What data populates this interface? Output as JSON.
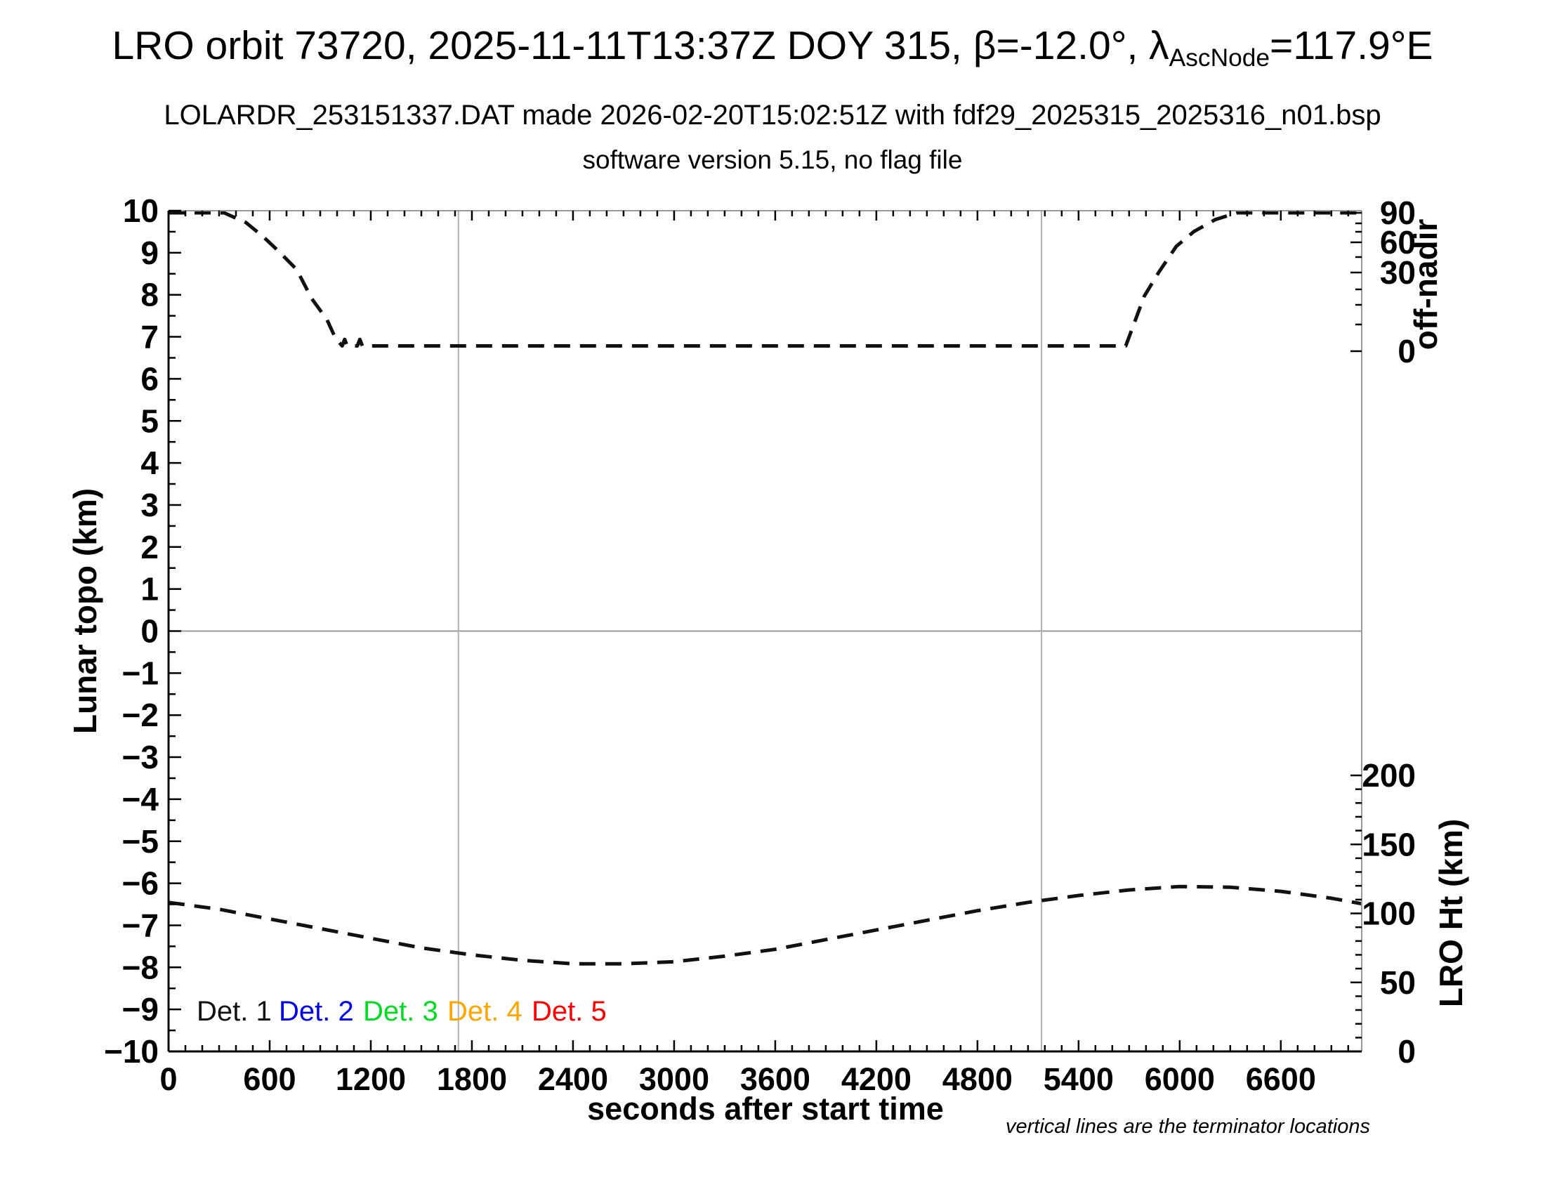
{
  "header": {
    "title_pre": "LRO orbit 73720, 2025-11-11T13:37Z DOY 315, β=-12.0°, λ",
    "title_sub": "AscNode",
    "title_post": "=117.9°E",
    "subtitle1": "LOLARDR_253151337.DAT made 2026-02-20T15:02:51Z with fdf29_2025315_2025316_n01.bsp",
    "subtitle2": "software version 5.15, no flag file"
  },
  "note": "vertical lines are the terminator locations",
  "legend": [
    {
      "label": "Det. 1",
      "color": "#111111"
    },
    {
      "label": "Det. 2",
      "color": "#0000ee"
    },
    {
      "label": "Det. 3",
      "color": "#00dd22"
    },
    {
      "label": "Det. 4",
      "color": "#ffa500"
    },
    {
      "label": "Det. 5",
      "color": "#ff0000"
    }
  ],
  "colors": {
    "curve": "#111111",
    "axis_dark": "#000000",
    "axis_light": "#999999",
    "terminator_line": "#b0b0b0",
    "zero_line": "#999999",
    "background": "#ffffff"
  },
  "chart_data": {
    "type": "line",
    "title": "LRO orbit 73720, 2025-11-11T13:37Z DOY 315, β=-12.0°, λAscNode=117.9°E",
    "xlabel": "seconds after start time",
    "x_range": [
      0,
      7080
    ],
    "x_major_ticks": [
      0,
      600,
      1200,
      1800,
      2400,
      3000,
      3600,
      4200,
      4800,
      5400,
      6000,
      6600
    ],
    "x_minor_step": 100,
    "left_axis": {
      "label": "Lunar topo (km)",
      "range": [
        -10,
        10
      ],
      "major_step": 1,
      "minor_step": 0.5
    },
    "right_axis_top": {
      "label": "off-nadir",
      "tick_labels": [
        90,
        60,
        30,
        0
      ]
    },
    "right_axis_bottom": {
      "label": "LRO Ht (km)",
      "tick_labels": [
        200,
        150,
        100,
        50,
        0
      ],
      "minor_step": 10
    },
    "terminator_lines_s": [
      1720,
      5180
    ],
    "grid": "off",
    "legend_position": "inside-bottom-left",
    "series": [
      {
        "name": "off-nadir angle (deg)",
        "axis": "right_top",
        "style": "dashed",
        "x": [
          0,
          330,
          460,
          560,
          660,
          760,
          850,
          940,
          990,
          1030,
          1045,
          1060,
          1120,
          1135,
          1150,
          1400,
          1800,
          2200,
          2600,
          3000,
          3400,
          3800,
          4200,
          4600,
          5000,
          5400,
          5680,
          5790,
          5875,
          5980,
          6085,
          6210,
          6340,
          6500,
          6800,
          7080
        ],
        "values": [
          90,
          90,
          80,
          66,
          50,
          33,
          20,
          12,
          5,
          2,
          4.5,
          2,
          2,
          4.5,
          2,
          2,
          2,
          2,
          2,
          2,
          2,
          2,
          2,
          2,
          2,
          2,
          2,
          21,
          30,
          56,
          71,
          83,
          90,
          90,
          90,
          90
        ]
      },
      {
        "name": "LRO height (km)",
        "axis": "right_bottom",
        "style": "dashed",
        "x": [
          0,
          300,
          600,
          900,
          1200,
          1500,
          1800,
          2100,
          2400,
          2700,
          3000,
          3300,
          3600,
          3900,
          4200,
          4500,
          4800,
          5100,
          5400,
          5700,
          6000,
          6300,
          6600,
          6900,
          7080
        ],
        "values": [
          108,
          103,
          96,
          89,
          82,
          75,
          70,
          66,
          63.5,
          63.5,
          65,
          69,
          74,
          81,
          88,
          95,
          102,
          108,
          113,
          117,
          119.5,
          119,
          116,
          111,
          107
        ]
      }
    ]
  }
}
